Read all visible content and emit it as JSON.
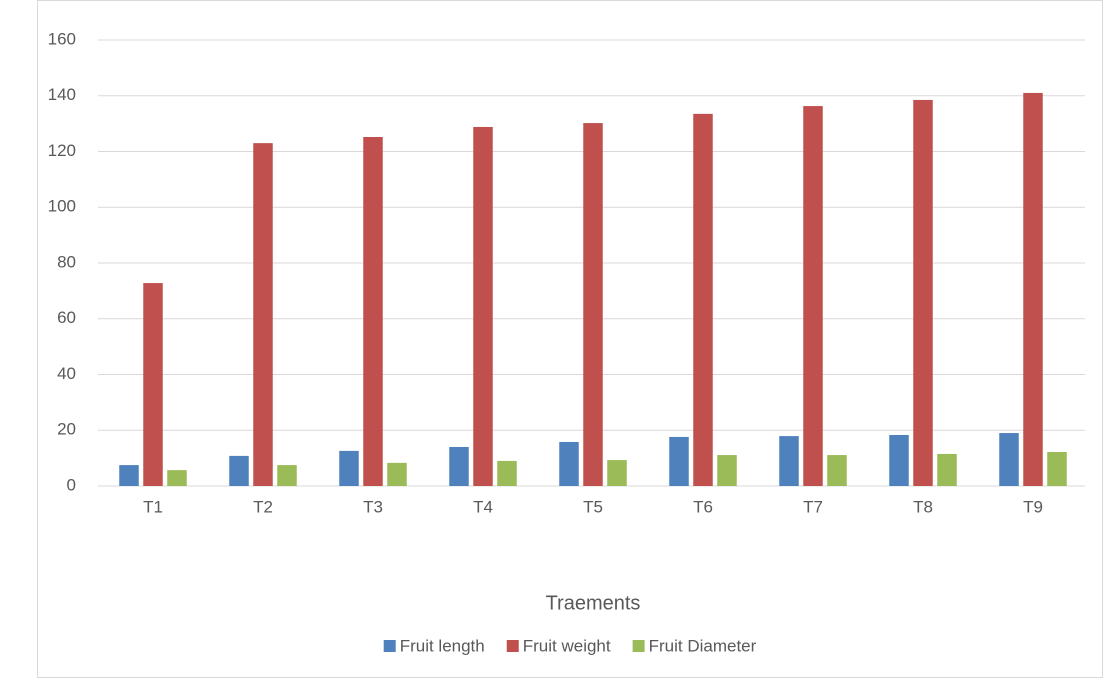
{
  "chart_data": {
    "type": "bar",
    "x_label": "Traements",
    "categories": [
      "T1",
      "T2",
      "T3",
      "T4",
      "T5",
      "T6",
      "T7",
      "T8",
      "T9"
    ],
    "series": [
      {
        "name": "Fruit length",
        "color": "#4f81bd",
        "values": [
          7.5,
          10.8,
          12.6,
          14,
          15.8,
          17.6,
          17.9,
          18.3,
          19
        ]
      },
      {
        "name": "Fruit weight",
        "color": "#c0504d",
        "values": [
          72.8,
          123,
          125.2,
          128.8,
          130.2,
          133.5,
          136.3,
          138.5,
          141
        ]
      },
      {
        "name": "Fruit Diameter",
        "color": "#9bbb59",
        "values": [
          5.7,
          7.5,
          8.3,
          9,
          9.3,
          11.1,
          11.1,
          11.5,
          12.2
        ]
      }
    ],
    "ylim": [
      0,
      160
    ],
    "yticks": [
      0,
      20,
      40,
      60,
      80,
      100,
      120,
      140,
      160
    ],
    "grid": true,
    "legend": "bottom"
  }
}
